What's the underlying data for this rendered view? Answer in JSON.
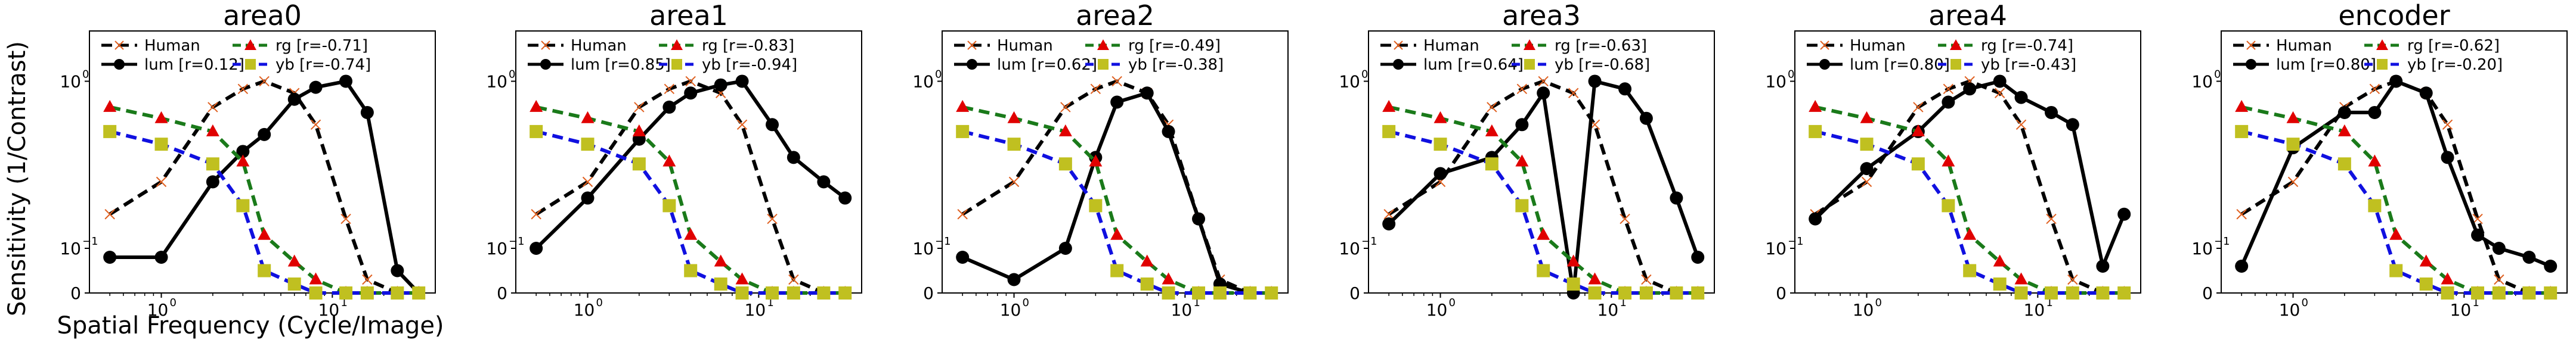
{
  "figure": {
    "ylabel": "Sensitivity (1/Contrast)",
    "xlabel": "Spatial Frequency (Cycle/Image)"
  },
  "chart_data": [
    {
      "type": "line",
      "title": "area0",
      "x": [
        0.5,
        1,
        2,
        3,
        4,
        6,
        8,
        12,
        16,
        24,
        32
      ],
      "xscale": "log",
      "yscale": "symlog",
      "xticks": [
        "10^0",
        "10^1"
      ],
      "yticks": [
        "0",
        "10^-1",
        "10^0"
      ],
      "series": [
        {
          "name": "Human",
          "values": [
            0.16,
            0.25,
            0.7,
            0.9,
            1.0,
            0.85,
            0.55,
            0.15,
            0.03,
            0.0,
            0.0
          ]
        },
        {
          "name": "lum [r=0.12]",
          "values": [
            0.08,
            0.08,
            0.25,
            0.38,
            0.48,
            0.78,
            0.92,
            1.0,
            0.65,
            0.05,
            0.0
          ]
        },
        {
          "name": "rg [r=-0.71]",
          "values": [
            0.7,
            0.6,
            0.5,
            0.33,
            0.12,
            0.07,
            0.03,
            0.0,
            0.0,
            0.0,
            0.0
          ]
        },
        {
          "name": "yb [r=-0.74]",
          "values": [
            0.5,
            0.42,
            0.32,
            0.18,
            0.05,
            0.02,
            0.0,
            0.0,
            0.0,
            0.0,
            0.0
          ]
        }
      ],
      "colors": {
        "Human": "#000000",
        "lum": "#000000",
        "rg": "#1a7a1a",
        "yb": "#1010e0"
      }
    },
    {
      "type": "line",
      "title": "area1",
      "x": [
        0.5,
        1,
        2,
        3,
        4,
        6,
        8,
        12,
        16,
        24,
        32
      ],
      "series": [
        {
          "name": "Human",
          "values": [
            0.16,
            0.25,
            0.7,
            0.9,
            1.0,
            0.85,
            0.55,
            0.15,
            0.03,
            0.0,
            0.0
          ]
        },
        {
          "name": "lum [r=0.85]",
          "values": [
            0.1,
            0.2,
            0.45,
            0.7,
            0.85,
            0.95,
            1.0,
            0.55,
            0.35,
            0.25,
            0.2
          ]
        },
        {
          "name": "rg [r=-0.83]",
          "values": [
            0.7,
            0.6,
            0.5,
            0.33,
            0.12,
            0.07,
            0.03,
            0.0,
            0.0,
            0.0,
            0.0
          ]
        },
        {
          "name": "yb [r=-0.94]",
          "values": [
            0.5,
            0.42,
            0.32,
            0.18,
            0.05,
            0.02,
            0.0,
            0.0,
            0.0,
            0.0,
            0.0
          ]
        }
      ]
    },
    {
      "type": "line",
      "title": "area2",
      "x": [
        0.5,
        1,
        2,
        3,
        4,
        6,
        8,
        12,
        16,
        24,
        32
      ],
      "series": [
        {
          "name": "Human",
          "values": [
            0.16,
            0.25,
            0.7,
            0.9,
            1.0,
            0.85,
            0.55,
            0.15,
            0.03,
            0.0,
            0.0
          ]
        },
        {
          "name": "lum [r=0.62]",
          "values": [
            0.08,
            0.03,
            0.1,
            0.35,
            0.75,
            0.85,
            0.5,
            0.15,
            0.02,
            0.0,
            0.0
          ]
        },
        {
          "name": "rg [r=-0.49]",
          "values": [
            0.7,
            0.6,
            0.5,
            0.33,
            0.12,
            0.07,
            0.03,
            0.0,
            0.0,
            0.0,
            0.0
          ]
        },
        {
          "name": "yb [r=-0.38]",
          "values": [
            0.5,
            0.42,
            0.32,
            0.18,
            0.05,
            0.02,
            0.0,
            0.0,
            0.0,
            0.0,
            0.0
          ]
        }
      ]
    },
    {
      "type": "line",
      "title": "area3",
      "x": [
        0.5,
        1,
        2,
        3,
        4,
        6,
        8,
        12,
        16,
        24,
        32
      ],
      "series": [
        {
          "name": "Human",
          "values": [
            0.16,
            0.25,
            0.7,
            0.9,
            1.0,
            0.85,
            0.55,
            0.15,
            0.03,
            0.0,
            0.0
          ]
        },
        {
          "name": "lum [r=0.64]",
          "values": [
            0.14,
            0.28,
            0.35,
            0.55,
            0.85,
            0.0,
            1.0,
            0.9,
            0.6,
            0.2,
            0.08
          ]
        },
        {
          "name": "rg [r=-0.63]",
          "values": [
            0.7,
            0.6,
            0.5,
            0.33,
            0.12,
            0.07,
            0.03,
            0.0,
            0.0,
            0.0,
            0.0
          ]
        },
        {
          "name": "yb [r=-0.68]",
          "values": [
            0.5,
            0.42,
            0.32,
            0.18,
            0.05,
            0.02,
            0.0,
            0.0,
            0.0,
            0.0,
            0.0
          ]
        }
      ]
    },
    {
      "type": "line",
      "title": "area4",
      "x": [
        0.5,
        1,
        2,
        3,
        4,
        6,
        8,
        12,
        16,
        24,
        32
      ],
      "series": [
        {
          "name": "Human",
          "values": [
            0.16,
            0.25,
            0.7,
            0.9,
            1.0,
            0.85,
            0.55,
            0.15,
            0.03,
            0.0,
            0.0
          ]
        },
        {
          "name": "lum [r=0.80]",
          "values": [
            0.15,
            0.3,
            0.5,
            0.75,
            0.9,
            1.0,
            0.8,
            0.65,
            0.55,
            0.06,
            0.16
          ]
        },
        {
          "name": "rg [r=-0.74]",
          "values": [
            0.7,
            0.6,
            0.5,
            0.33,
            0.12,
            0.07,
            0.03,
            0.0,
            0.0,
            0.0,
            0.0
          ]
        },
        {
          "name": "yb [r=-0.43]",
          "values": [
            0.5,
            0.42,
            0.32,
            0.18,
            0.05,
            0.02,
            0.0,
            0.0,
            0.0,
            0.0,
            0.0
          ]
        }
      ]
    },
    {
      "type": "line",
      "title": "encoder",
      "x": [
        0.5,
        1,
        2,
        3,
        4,
        6,
        8,
        12,
        16,
        24,
        32
      ],
      "series": [
        {
          "name": "Human",
          "values": [
            0.16,
            0.25,
            0.7,
            0.9,
            1.0,
            0.85,
            0.55,
            0.15,
            0.03,
            0.0,
            0.0
          ]
        },
        {
          "name": "lum [r=0.80]",
          "values": [
            0.06,
            0.4,
            0.65,
            0.65,
            1.0,
            0.85,
            0.35,
            0.12,
            0.1,
            0.08,
            0.06
          ]
        },
        {
          "name": "rg [r=-0.62]",
          "values": [
            0.7,
            0.6,
            0.5,
            0.33,
            0.12,
            0.07,
            0.03,
            0.0,
            0.0,
            0.0,
            0.0
          ]
        },
        {
          "name": "yb [r=-0.20]",
          "values": [
            0.5,
            0.42,
            0.32,
            0.18,
            0.05,
            0.02,
            0.0,
            0.0,
            0.0,
            0.0,
            0.0
          ]
        }
      ]
    }
  ]
}
